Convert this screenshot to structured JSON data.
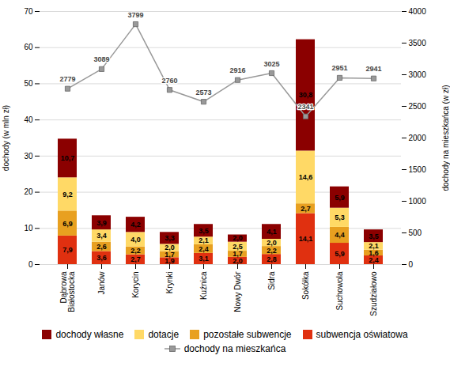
{
  "chart_data": {
    "type": "bar",
    "stacked": true,
    "categories": [
      "Dąbrowa\nBiałostocka",
      "Janów",
      "Korycin",
      "Krynki",
      "Kuźnica",
      "Nowy Dwór",
      "Sidra",
      "Sokółka",
      "Suchowola",
      "Szudziałowo"
    ],
    "series": [
      {
        "name": "dochody własne",
        "color": "#8B0000",
        "values": [
          10.7,
          3.9,
          4.2,
          3.3,
          3.5,
          2.0,
          4.1,
          30.8,
          5.9,
          3.5
        ],
        "value_labels": [
          "10,7",
          "3,9",
          "4,2",
          "3,3",
          "3,5",
          "2,0",
          "4,1",
          "30,8",
          "5,9",
          "3,5"
        ]
      },
      {
        "name": "dotacje",
        "color": "#FFD966",
        "values": [
          9.2,
          3.4,
          4.0,
          2.0,
          2.1,
          2.5,
          2.0,
          14.6,
          5.3,
          2.1
        ],
        "value_labels": [
          "9,2",
          "3,4",
          "4,0",
          "2,0",
          "2,1",
          "2,5",
          "2,0",
          "14,6",
          "5,3",
          "2,1"
        ]
      },
      {
        "name": "pozostałe subwencje",
        "color": "#E8A020",
        "values": [
          6.9,
          2.6,
          2.2,
          1.7,
          2.4,
          1.7,
          2.2,
          2.7,
          4.4,
          1.6
        ],
        "value_labels": [
          "6,9",
          "2,6",
          "2,2",
          "1,7",
          "2,4",
          "1,7",
          "2,2",
          "2,7",
          "4,4",
          "1,6"
        ]
      },
      {
        "name": "subwencja oświatowa",
        "color": "#E03010",
        "values": [
          7.9,
          3.6,
          2.7,
          1.9,
          3.1,
          2.0,
          2.8,
          14.1,
          5.9,
          2.4
        ],
        "value_labels": [
          "7,9",
          "3,6",
          "2,7",
          "1,9",
          "3,1",
          "2,0",
          "2,8",
          "14,1",
          "5,9",
          "2,4"
        ]
      },
      {
        "name": "dochody na mieszkańca",
        "type": "line",
        "axis": "y2",
        "color": "#999999",
        "marker": "square",
        "values": [
          2779,
          3089,
          3799,
          2760,
          2573,
          2916,
          3025,
          2341,
          2951,
          2941
        ]
      }
    ],
    "ylabel": "dochody (w mln zł)",
    "y2label": "dochody na mieszkańca (w zł)",
    "ylim": [
      0,
      70
    ],
    "yticks": [
      0,
      10,
      20,
      30,
      40,
      50,
      60,
      70
    ],
    "y2lim": [
      0,
      4000
    ],
    "y2ticks": [
      0,
      500,
      1000,
      1500,
      2000,
      2500,
      3000,
      3500,
      4000
    ],
    "grid": true,
    "data_labels": true,
    "legend": "bottom"
  }
}
